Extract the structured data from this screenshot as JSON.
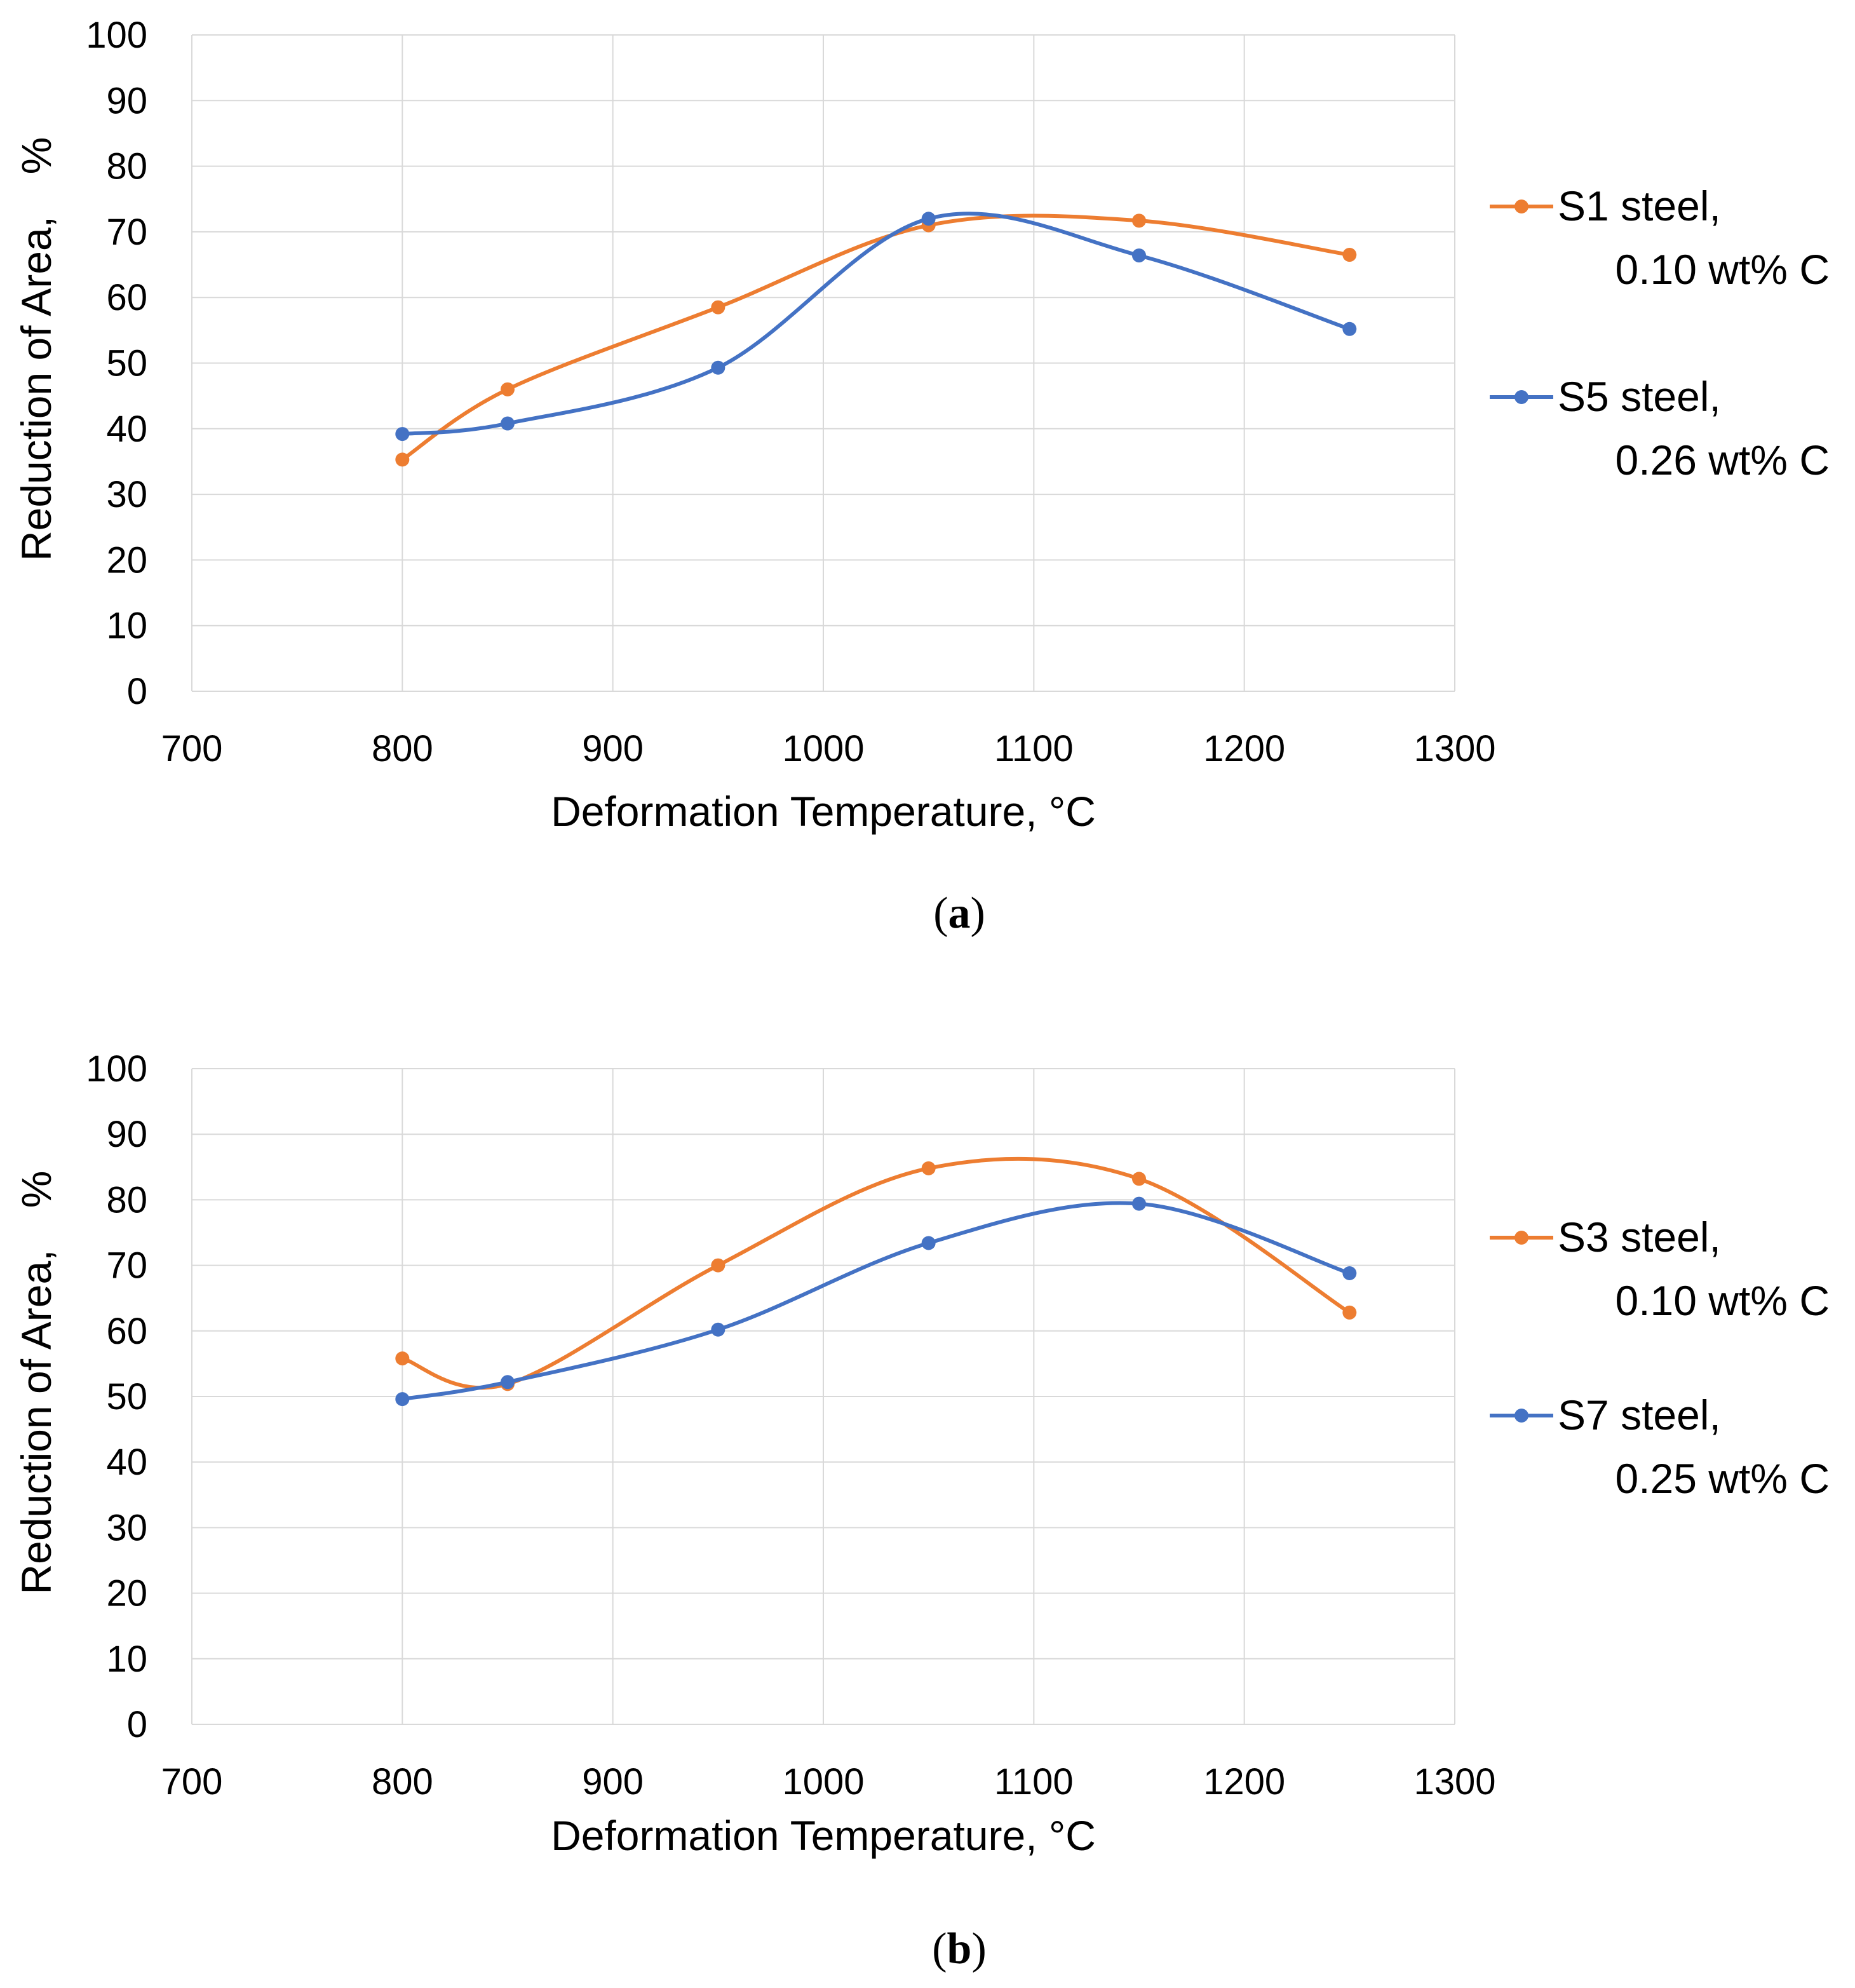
{
  "chart_data": [
    {
      "type": "line",
      "panel_label": "a",
      "xlabel": "Deformation Temperature, °C",
      "ylabel": "Reduction of Area,",
      "ylabel_unit": "%",
      "xlim": [
        700,
        1300
      ],
      "ylim": [
        0,
        100
      ],
      "xticks": [
        700,
        800,
        900,
        1000,
        1100,
        1200,
        1300
      ],
      "yticks": [
        0,
        10,
        20,
        30,
        40,
        50,
        60,
        70,
        80,
        90,
        100
      ],
      "grid": true,
      "legend_position": "right",
      "x": [
        800,
        850,
        950,
        1050,
        1150,
        1250
      ],
      "series": [
        {
          "name": "S1 steel,",
          "name_line2": "0.10 wt% C",
          "color": "#ED7D31",
          "values": [
            35.3,
            46.0,
            58.5,
            71.0,
            71.7,
            66.5
          ]
        },
        {
          "name": "S5 steel,",
          "name_line2": "0.26 wt% C",
          "color": "#4472C4",
          "values": [
            39.2,
            40.8,
            49.3,
            72.0,
            66.4,
            55.2
          ]
        }
      ]
    },
    {
      "type": "line",
      "panel_label": "b",
      "xlabel": "Deformation Temperature, °C",
      "ylabel": "Reduction of Area,",
      "ylabel_unit": "%",
      "xlim": [
        700,
        1300
      ],
      "ylim": [
        0,
        100
      ],
      "xticks": [
        700,
        800,
        900,
        1000,
        1100,
        1200,
        1300
      ],
      "yticks": [
        0,
        10,
        20,
        30,
        40,
        50,
        60,
        70,
        80,
        90,
        100
      ],
      "grid": true,
      "legend_position": "right",
      "x": [
        800,
        850,
        950,
        1050,
        1150,
        1250
      ],
      "series": [
        {
          "name": "S3 steel,",
          "name_line2": "0.10 wt% C",
          "color": "#ED7D31",
          "values": [
            55.8,
            51.9,
            70.0,
            84.8,
            83.2,
            62.8
          ]
        },
        {
          "name": "S7 steel,",
          "name_line2": "0.25 wt% C",
          "color": "#4472C4",
          "values": [
            49.6,
            52.2,
            60.2,
            73.4,
            79.4,
            68.8
          ]
        }
      ]
    }
  ]
}
